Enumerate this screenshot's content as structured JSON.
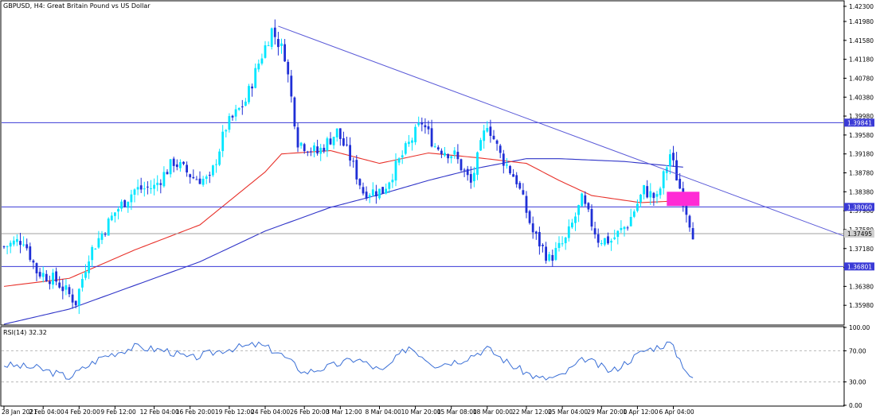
{
  "header": {
    "symbol": "GBPUSD",
    "timeframe": "H4",
    "description": "Great Britain Pound vs US Dollar",
    "title": "GBPUSD, H4:  Great Britain Pound vs US Dollar"
  },
  "colors": {
    "background": "#ffffff",
    "bull_candle": "#00e6ff",
    "bear_candle": "#1f2fd6",
    "ma_fast": "#e8322b",
    "ma_slow": "#2f34c8",
    "level_line": "#3a3ad6",
    "trend_line": "#5a5ad8",
    "rsi_line": "#3a6fd6",
    "box": "#ff2bd5",
    "axis": "#000000"
  },
  "chart_data": [
    {
      "type": "candlestick",
      "name": "price",
      "ylim": [
        1.3558,
        1.424
      ],
      "y_ticks": [
        "1.42300",
        "1.41980",
        "1.41580",
        "1.41180",
        "1.40780",
        "1.40380",
        "1.39980",
        "1.39580",
        "1.39180",
        "1.38780",
        "1.38380",
        "1.37980",
        "1.37580",
        "1.37180",
        "1.36780",
        "1.36380",
        "1.35980"
      ],
      "y_tick_values": [
        1.423,
        1.4198,
        1.4158,
        1.4118,
        1.4078,
        1.4038,
        1.3998,
        1.3958,
        1.3918,
        1.3878,
        1.3838,
        1.3798,
        1.3758,
        1.3718,
        1.3678,
        1.3638,
        1.3598
      ],
      "x_labels": [
        "28 Jan 2021",
        "2 Feb 04:00",
        "4 Feb 20:00",
        "9 Feb 12:00",
        "12 Feb 04:00",
        "16 Feb 20:00",
        "19 Feb 12:00",
        "24 Feb 04:00",
        "26 Feb 20:00",
        "3 Mar 12:00",
        "8 Mar 04:00",
        "10 Mar 20:00",
        "15 Mar 08:00",
        "18 Mar 00:00",
        "22 Mar 12:00",
        "25 Mar 04:00",
        "29 Mar 20:00",
        "1 Apr 12:00",
        "6 Apr 04:00"
      ],
      "x_label_index": [
        0,
        12,
        23,
        34,
        46,
        57,
        69,
        80,
        92,
        103,
        115,
        126,
        137,
        148,
        160,
        171,
        183,
        194,
        205
      ],
      "close_path": [
        [
          0,
          1.3722
        ],
        [
          6,
          1.3738
        ],
        [
          10,
          1.367
        ],
        [
          16,
          1.365
        ],
        [
          22,
          1.3605
        ],
        [
          26,
          1.3705
        ],
        [
          34,
          1.3795
        ],
        [
          40,
          1.3842
        ],
        [
          46,
          1.3848
        ],
        [
          52,
          1.3902
        ],
        [
          58,
          1.3868
        ],
        [
          63,
          1.3862
        ],
        [
          68,
          1.3975
        ],
        [
          74,
          1.403
        ],
        [
          78,
          1.411
        ],
        [
          82,
          1.418
        ],
        [
          86,
          1.4128
        ],
        [
          90,
          1.3945
        ],
        [
          96,
          1.392
        ],
        [
          102,
          1.3965
        ],
        [
          106,
          1.391
        ],
        [
          110,
          1.3838
        ],
        [
          116,
          1.384
        ],
        [
          122,
          1.3915
        ],
        [
          128,
          1.3985
        ],
        [
          132,
          1.3935
        ],
        [
          138,
          1.3915
        ],
        [
          143,
          1.3855
        ],
        [
          148,
          1.3985
        ],
        [
          152,
          1.3915
        ],
        [
          157,
          1.3862
        ],
        [
          162,
          1.3752
        ],
        [
          167,
          1.3695
        ],
        [
          172,
          1.3735
        ],
        [
          177,
          1.382
        ],
        [
          182,
          1.3738
        ],
        [
          186,
          1.3735
        ],
        [
          191,
          1.377
        ],
        [
          196,
          1.3842
        ],
        [
          200,
          1.3822
        ],
        [
          204,
          1.3918
        ],
        [
          208,
          1.3822
        ],
        [
          211,
          1.3752
        ]
      ],
      "lines": {
        "horizontal_levels": [
          {
            "label": "1.39841",
            "value": 1.39841
          },
          {
            "label": "1.38060",
            "value": 1.3806
          },
          {
            "label": "1.37495",
            "value": 1.37495
          },
          {
            "label": "1.36801",
            "value": 1.36801
          }
        ],
        "trend_line": {
          "start": [
            84,
            1.4188
          ],
          "end": [
            259,
            1.374
          ]
        },
        "ma_fast_path": [
          [
            0,
            1.3638
          ],
          [
            20,
            1.3655
          ],
          [
            40,
            1.3715
          ],
          [
            60,
            1.3768
          ],
          [
            80,
            1.388
          ],
          [
            85,
            1.3918
          ],
          [
            100,
            1.3925
          ],
          [
            115,
            1.3898
          ],
          [
            130,
            1.392
          ],
          [
            145,
            1.391
          ],
          [
            160,
            1.3898
          ],
          [
            170,
            1.3862
          ],
          [
            180,
            1.383
          ],
          [
            195,
            1.3815
          ],
          [
            210,
            1.382
          ]
        ],
        "ma_slow_path": [
          [
            0,
            1.3558
          ],
          [
            20,
            1.359
          ],
          [
            40,
            1.364
          ],
          [
            60,
            1.369
          ],
          [
            80,
            1.3755
          ],
          [
            100,
            1.3805
          ],
          [
            115,
            1.3832
          ],
          [
            130,
            1.3862
          ],
          [
            145,
            1.3888
          ],
          [
            160,
            1.3908
          ],
          [
            170,
            1.3908
          ],
          [
            190,
            1.3902
          ],
          [
            208,
            1.389
          ]
        ],
        "highlight_box": {
          "x_from": 203,
          "x_to": 213,
          "y_from": 1.3838,
          "y_to": 1.3808
        }
      }
    },
    {
      "type": "line",
      "name": "RSI",
      "ylim": [
        0,
        100
      ],
      "y_ticks": [
        "100.00",
        "70.00",
        "30.00",
        "0.00"
      ],
      "y_tick_values": [
        100,
        70,
        30,
        0
      ],
      "levels": [
        70,
        30
      ],
      "label": "RSI(14) 32.32",
      "value_path": [
        [
          0,
          52
        ],
        [
          10,
          48
        ],
        [
          20,
          36
        ],
        [
          30,
          62
        ],
        [
          40,
          75
        ],
        [
          50,
          70
        ],
        [
          57,
          60
        ],
        [
          68,
          72
        ],
        [
          78,
          78
        ],
        [
          84,
          68
        ],
        [
          92,
          42
        ],
        [
          100,
          50
        ],
        [
          108,
          60
        ],
        [
          116,
          43
        ],
        [
          124,
          76
        ],
        [
          132,
          52
        ],
        [
          140,
          58
        ],
        [
          148,
          73
        ],
        [
          156,
          50
        ],
        [
          164,
          34
        ],
        [
          170,
          36
        ],
        [
          178,
          60
        ],
        [
          186,
          43
        ],
        [
          196,
          70
        ],
        [
          204,
          80
        ],
        [
          208,
          52
        ],
        [
          211,
          32
        ]
      ]
    }
  ],
  "price_scale_labels": {
    "current_price_tag": "1.37495"
  }
}
